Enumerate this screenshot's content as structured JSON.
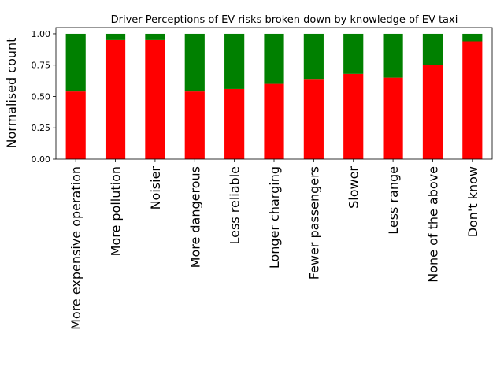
{
  "chart_data": {
    "type": "bar",
    "stacked": true,
    "title": "Driver Perceptions of EV risks broken down by knowledge of EV taxi",
    "xlabel": "",
    "ylabel": "Normalised count",
    "ylim": [
      0,
      1.05
    ],
    "yticks": [
      "0.00",
      "0.25",
      "0.50",
      "0.75",
      "1.00"
    ],
    "grid": false,
    "categories": [
      "More expensive operation",
      "More pollution",
      "Noisier",
      "More dangerous",
      "Less reliable",
      "Longer charging",
      "Fewer passengers",
      "Slower",
      "Less range",
      "None of the above",
      "Don't know"
    ],
    "series": [
      {
        "color": "#ff0000",
        "values": [
          0.54,
          0.95,
          0.95,
          0.54,
          0.56,
          0.6,
          0.64,
          0.68,
          0.65,
          0.75,
          0.94
        ]
      },
      {
        "color": "#008000",
        "values": [
          0.46,
          0.05,
          0.05,
          0.46,
          0.44,
          0.4,
          0.36,
          0.32,
          0.35,
          0.25,
          0.06
        ]
      }
    ]
  }
}
